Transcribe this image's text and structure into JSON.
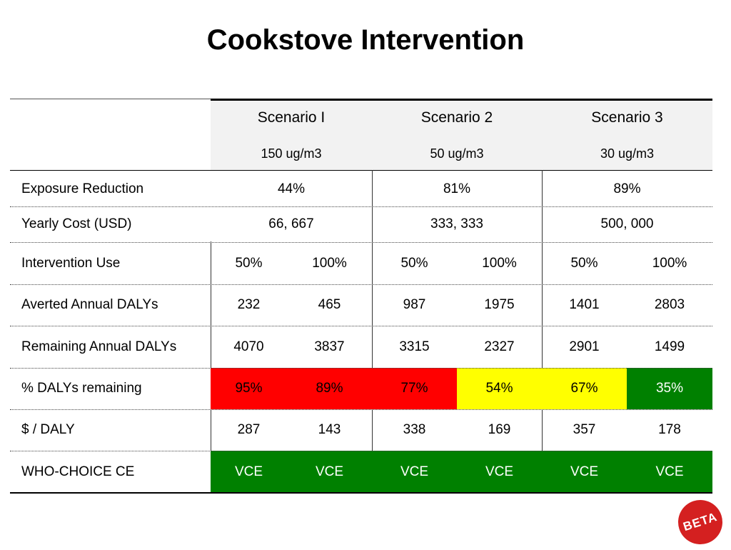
{
  "title": "Cookstove Intervention",
  "scenarios": [
    {
      "name": "Scenario I",
      "concentration": "150 ug/m3",
      "exposure_reduction": "44%",
      "yearly_cost": "66, 667"
    },
    {
      "name": "Scenario 2",
      "concentration": "50 ug/m3",
      "exposure_reduction": "81%",
      "yearly_cost": "333, 333"
    },
    {
      "name": "Scenario 3",
      "concentration": "30 ug/m3",
      "exposure_reduction": "89%",
      "yearly_cost": "500, 000"
    }
  ],
  "row_labels": {
    "exposure_reduction": "Exposure Reduction",
    "yearly_cost": "Yearly Cost (USD)",
    "intervention_use": "Intervention Use",
    "averted": "Averted Annual DALYs",
    "remaining": "Remaining Annual DALYs",
    "pct_remaining": "% DALYs remaining",
    "cost_per_daly": "$ / DALY",
    "who_choice": "WHO-CHOICE CE"
  },
  "rows": {
    "intervention_use": [
      "50%",
      "100%",
      "50%",
      "100%",
      "50%",
      "100%"
    ],
    "averted": [
      "232",
      "465",
      "987",
      "1975",
      "1401",
      "2803"
    ],
    "remaining": [
      "4070",
      "3837",
      "3315",
      "2327",
      "2901",
      "1499"
    ],
    "pct_remaining": [
      "95%",
      "89%",
      "77%",
      "54%",
      "67%",
      "35%"
    ],
    "cost_per_daly": [
      "287",
      "143",
      "338",
      "169",
      "357",
      "178"
    ],
    "who_choice": [
      "VCE",
      "VCE",
      "VCE",
      "VCE",
      "VCE",
      "VCE"
    ]
  },
  "pct_colors": [
    "red",
    "red",
    "red",
    "yellow",
    "yellow",
    "green"
  ],
  "colors": {
    "red": "#ff0000",
    "yellow": "#ffff00",
    "green": "#008000"
  },
  "badge": "BETA"
}
